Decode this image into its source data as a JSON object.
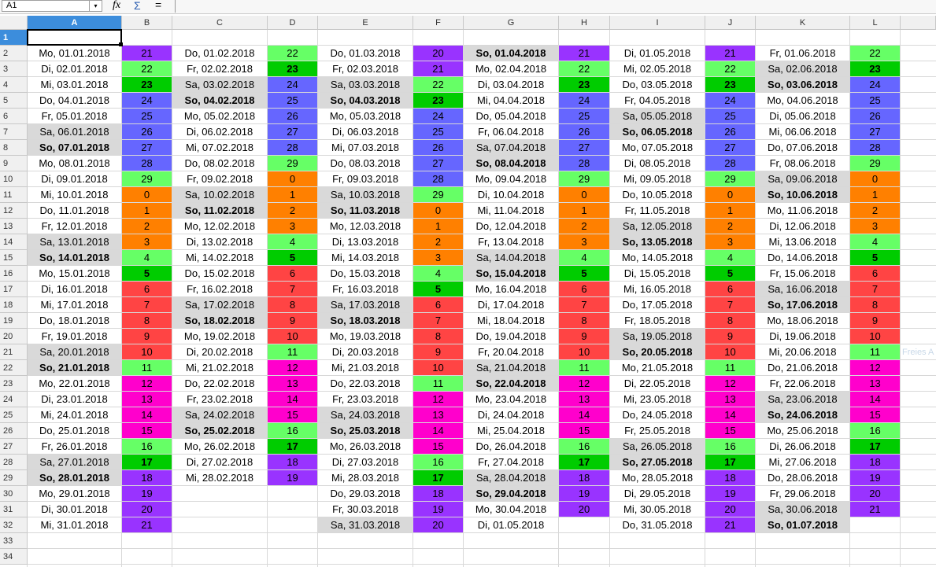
{
  "toolbar": {
    "name_box": "A1",
    "icons": [
      "fx",
      "Σ",
      "="
    ]
  },
  "columns": [
    "A",
    "B",
    "C",
    "D",
    "E",
    "F",
    "G",
    "H",
    "I",
    "J",
    "K",
    "L"
  ],
  "rows": [
    1,
    2,
    3,
    4,
    5,
    6,
    7,
    8,
    9,
    10,
    11,
    12,
    13,
    14,
    15,
    16,
    17,
    18,
    19,
    20,
    21,
    22,
    23,
    24,
    25,
    26,
    27,
    28,
    29,
    30,
    31,
    32,
    33,
    34
  ],
  "months": [
    {
      "dates": [
        "Mo, 01.01.2018",
        "Di, 02.01.2018",
        "Mi, 03.01.2018",
        "Do, 04.01.2018",
        "Fr, 05.01.2018",
        "Sa, 06.01.2018",
        "So, 07.01.2018",
        "Mo, 08.01.2018",
        "Di, 09.01.2018",
        "Mi, 10.01.2018",
        "Do, 11.01.2018",
        "Fr, 12.01.2018",
        "Sa, 13.01.2018",
        "So, 14.01.2018",
        "Mo, 15.01.2018",
        "Di, 16.01.2018",
        "Mi, 17.01.2018",
        "Do, 18.01.2018",
        "Fr, 19.01.2018",
        "Sa, 20.01.2018",
        "So, 21.01.2018",
        "Mo, 22.01.2018",
        "Di, 23.01.2018",
        "Mi, 24.01.2018",
        "Do, 25.01.2018",
        "Fr, 26.01.2018",
        "Sa, 27.01.2018",
        "So, 28.01.2018",
        "Mo, 29.01.2018",
        "Di, 30.01.2018",
        "Mi, 31.01.2018"
      ],
      "numbers": [
        21,
        22,
        23,
        24,
        25,
        26,
        27,
        28,
        29,
        0,
        1,
        2,
        3,
        4,
        5,
        6,
        7,
        8,
        9,
        10,
        11,
        12,
        13,
        14,
        15,
        16,
        17,
        18,
        19,
        20,
        21
      ]
    },
    {
      "dates": [
        "Do, 01.02.2018",
        "Fr, 02.02.2018",
        "Sa, 03.02.2018",
        "So, 04.02.2018",
        "Mo, 05.02.2018",
        "Di, 06.02.2018",
        "Mi, 07.02.2018",
        "Do, 08.02.2018",
        "Fr, 09.02.2018",
        "Sa, 10.02.2018",
        "So, 11.02.2018",
        "Mo, 12.02.2018",
        "Di, 13.02.2018",
        "Mi, 14.02.2018",
        "Do, 15.02.2018",
        "Fr, 16.02.2018",
        "Sa, 17.02.2018",
        "So, 18.02.2018",
        "Mo, 19.02.2018",
        "Di, 20.02.2018",
        "Mi, 21.02.2018",
        "Do, 22.02.2018",
        "Fr, 23.02.2018",
        "Sa, 24.02.2018",
        "So, 25.02.2018",
        "Mo, 26.02.2018",
        "Di, 27.02.2018",
        "Mi, 28.02.2018"
      ],
      "numbers": [
        22,
        23,
        24,
        25,
        26,
        27,
        28,
        29,
        0,
        1,
        2,
        3,
        4,
        5,
        6,
        7,
        8,
        9,
        10,
        11,
        12,
        13,
        14,
        15,
        16,
        17,
        18,
        19
      ]
    },
    {
      "dates": [
        "Do, 01.03.2018",
        "Fr, 02.03.2018",
        "Sa, 03.03.2018",
        "So, 04.03.2018",
        "Mo, 05.03.2018",
        "Di, 06.03.2018",
        "Mi, 07.03.2018",
        "Do, 08.03.2018",
        "Fr, 09.03.2018",
        "Sa, 10.03.2018",
        "So, 11.03.2018",
        "Mo, 12.03.2018",
        "Di, 13.03.2018",
        "Mi, 14.03.2018",
        "Do, 15.03.2018",
        "Fr, 16.03.2018",
        "Sa, 17.03.2018",
        "So, 18.03.2018",
        "Mo, 19.03.2018",
        "Di, 20.03.2018",
        "Mi, 21.03.2018",
        "Do, 22.03.2018",
        "Fr, 23.03.2018",
        "Sa, 24.03.2018",
        "So, 25.03.2018",
        "Mo, 26.03.2018",
        "Di, 27.03.2018",
        "Mi, 28.03.2018",
        "Do, 29.03.2018",
        "Fr, 30.03.2018",
        "Sa, 31.03.2018"
      ],
      "numbers": [
        20,
        21,
        22,
        23,
        24,
        25,
        26,
        27,
        28,
        29,
        0,
        1,
        2,
        3,
        4,
        5,
        6,
        7,
        8,
        9,
        10,
        11,
        12,
        13,
        14,
        15,
        16,
        17,
        18,
        19,
        20
      ]
    },
    {
      "dates": [
        "So, 01.04.2018",
        "Mo, 02.04.2018",
        "Di, 03.04.2018",
        "Mi, 04.04.2018",
        "Do, 05.04.2018",
        "Fr, 06.04.2018",
        "Sa, 07.04.2018",
        "So, 08.04.2018",
        "Mo, 09.04.2018",
        "Di, 10.04.2018",
        "Mi, 11.04.2018",
        "Do, 12.04.2018",
        "Fr, 13.04.2018",
        "Sa, 14.04.2018",
        "So, 15.04.2018",
        "Mo, 16.04.2018",
        "Di, 17.04.2018",
        "Mi, 18.04.2018",
        "Do, 19.04.2018",
        "Fr, 20.04.2018",
        "Sa, 21.04.2018",
        "So, 22.04.2018",
        "Mo, 23.04.2018",
        "Di, 24.04.2018",
        "Mi, 25.04.2018",
        "Do, 26.04.2018",
        "Fr, 27.04.2018",
        "Sa, 28.04.2018",
        "So, 29.04.2018",
        "Mo, 30.04.2018",
        "Di, 01.05.2018"
      ],
      "numbers": [
        21,
        22,
        23,
        24,
        25,
        26,
        27,
        28,
        29,
        0,
        1,
        2,
        3,
        4,
        5,
        6,
        7,
        8,
        9,
        10,
        11,
        12,
        13,
        14,
        15,
        16,
        17,
        18,
        19,
        20
      ]
    },
    {
      "dates": [
        "Di, 01.05.2018",
        "Mi, 02.05.2018",
        "Do, 03.05.2018",
        "Fr, 04.05.2018",
        "Sa, 05.05.2018",
        "So, 06.05.2018",
        "Mo, 07.05.2018",
        "Di, 08.05.2018",
        "Mi, 09.05.2018",
        "Do, 10.05.2018",
        "Fr, 11.05.2018",
        "Sa, 12.05.2018",
        "So, 13.05.2018",
        "Mo, 14.05.2018",
        "Di, 15.05.2018",
        "Mi, 16.05.2018",
        "Do, 17.05.2018",
        "Fr, 18.05.2018",
        "Sa, 19.05.2018",
        "So, 20.05.2018",
        "Mo, 21.05.2018",
        "Di, 22.05.2018",
        "Mi, 23.05.2018",
        "Do, 24.05.2018",
        "Fr, 25.05.2018",
        "Sa, 26.05.2018",
        "So, 27.05.2018",
        "Mo, 28.05.2018",
        "Di, 29.05.2018",
        "Mi, 30.05.2018",
        "Do, 31.05.2018"
      ],
      "numbers": [
        21,
        22,
        23,
        24,
        25,
        26,
        27,
        28,
        29,
        0,
        1,
        2,
        3,
        4,
        5,
        6,
        7,
        8,
        9,
        10,
        11,
        12,
        13,
        14,
        15,
        16,
        17,
        18,
        19,
        20,
        21
      ]
    },
    {
      "dates": [
        "Fr, 01.06.2018",
        "Sa, 02.06.2018",
        "So, 03.06.2018",
        "Mo, 04.06.2018",
        "Di, 05.06.2018",
        "Mi, 06.06.2018",
        "Do, 07.06.2018",
        "Fr, 08.06.2018",
        "Sa, 09.06.2018",
        "So, 10.06.2018",
        "Mo, 11.06.2018",
        "Di, 12.06.2018",
        "Mi, 13.06.2018",
        "Do, 14.06.2018",
        "Fr, 15.06.2018",
        "Sa, 16.06.2018",
        "So, 17.06.2018",
        "Mo, 18.06.2018",
        "Di, 19.06.2018",
        "Mi, 20.06.2018",
        "Do, 21.06.2018",
        "Fr, 22.06.2018",
        "Sa, 23.06.2018",
        "So, 24.06.2018",
        "Mo, 25.06.2018",
        "Di, 26.06.2018",
        "Mi, 27.06.2018",
        "Do, 28.06.2018",
        "Fr, 29.06.2018",
        "Sa, 30.06.2018",
        "So, 01.07.2018"
      ],
      "numbers": [
        22,
        23,
        24,
        25,
        26,
        27,
        28,
        29,
        0,
        1,
        2,
        3,
        4,
        5,
        6,
        7,
        8,
        9,
        10,
        11,
        12,
        13,
        14,
        15,
        16,
        17,
        18,
        19,
        20,
        21
      ]
    }
  ],
  "value_colors": [
    "#ff8000",
    "#ff8000",
    "#ff8000",
    "#ff8000",
    "#66ff66",
    "#00cc00",
    "#ff4444",
    "#ff4444",
    "#ff4444",
    "#ff4444",
    "#ff4444",
    "#66ff66",
    "#ff00cc",
    "#ff00cc",
    "#ff00cc",
    "#ff00cc",
    "#66ff66",
    "#00cc00",
    "#9933ff",
    "#9933ff",
    "#9933ff",
    "#9933ff",
    "#66ff66",
    "#00cc00",
    "#6666ff",
    "#6666ff",
    "#6666ff",
    "#6666ff",
    "#6666ff",
    "#66ff66"
  ],
  "strong_fill": "#00cc00",
  "weekend_fill": "#d9d9d9",
  "side_note": "Freies A"
}
